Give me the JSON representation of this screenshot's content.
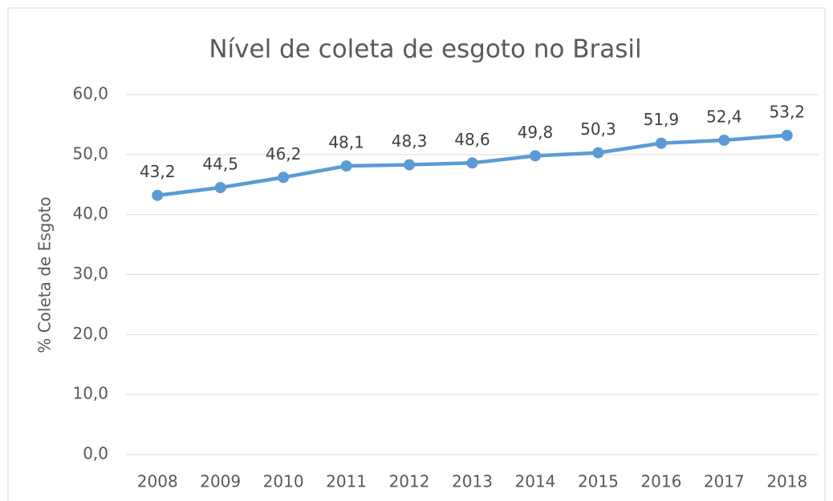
{
  "chart_data": {
    "type": "line",
    "title": "Nível de coleta de esgoto no Brasil",
    "y_label": "% Coleta de Esgoto",
    "categories": [
      "2008",
      "2009",
      "2010",
      "2011",
      "2012",
      "2013",
      "2014",
      "2015",
      "2016",
      "2017",
      "2018"
    ],
    "values": [
      43.2,
      44.5,
      46.2,
      48.1,
      48.3,
      48.6,
      49.8,
      50.3,
      51.9,
      52.4,
      53.2
    ],
    "value_labels": [
      "43,2",
      "44,5",
      "46,2",
      "48,1",
      "48,3",
      "48,6",
      "49,8",
      "50,3",
      "51,9",
      "52,4",
      "53,2"
    ],
    "color": "#5b9bd5",
    "ylim": [
      0,
      60
    ],
    "yticks": [
      {
        "value": 0,
        "label": "0,0"
      },
      {
        "value": 10,
        "label": "10,0"
      },
      {
        "value": 20,
        "label": "20,0"
      },
      {
        "value": 30,
        "label": "30,0"
      },
      {
        "value": 40,
        "label": "40,0"
      },
      {
        "value": 50,
        "label": "50,0"
      },
      {
        "value": 60,
        "label": "60,0"
      }
    ],
    "grid": true
  }
}
